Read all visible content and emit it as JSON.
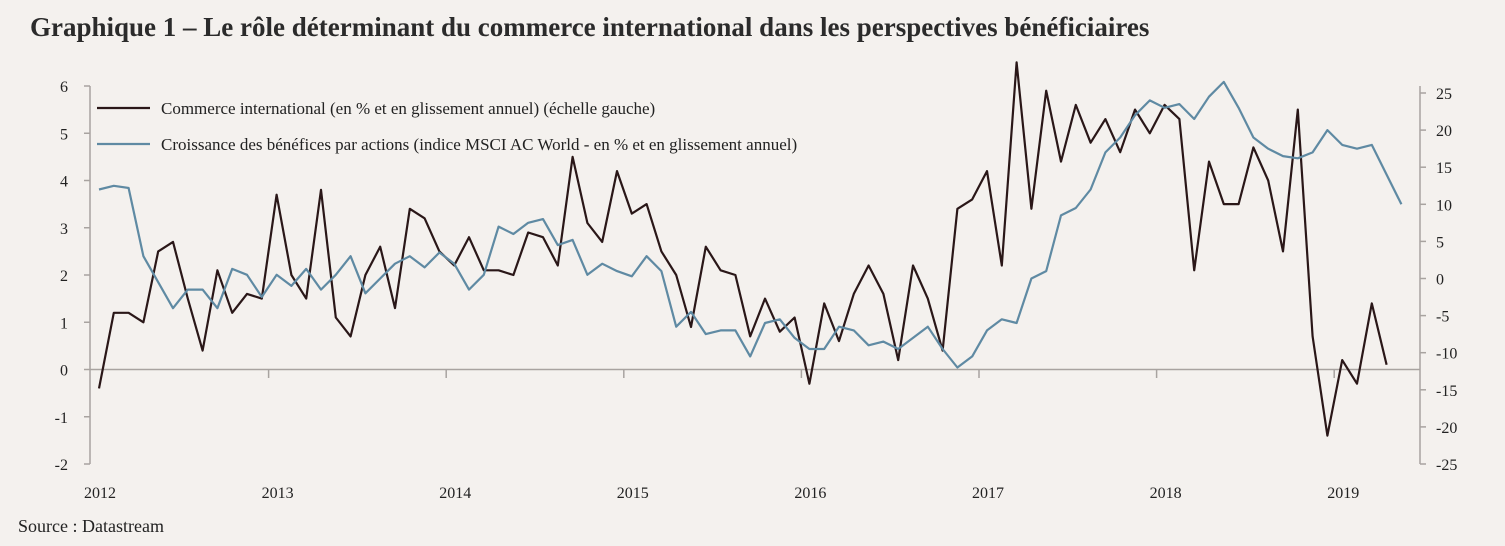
{
  "title": "Graphique 1 – Le rôle déterminant du commerce international dans les perspectives bénéficiaires",
  "source": "Source : Datastream",
  "chart_data": {
    "type": "line",
    "x_start": "2012-01",
    "x_step": "month",
    "x_tick_labels": [
      "2012",
      "2013",
      "2014",
      "2015",
      "2016",
      "2017",
      "2018",
      "2019"
    ],
    "y_left": {
      "ylim": [
        -2,
        6
      ],
      "ticks": [
        "6",
        "5",
        "4",
        "3",
        "2",
        "1",
        "0",
        "-1",
        "-2"
      ]
    },
    "y_right": {
      "ylim": [
        -25,
        26
      ],
      "ticks": [
        "25",
        "20",
        "15",
        "10",
        "5",
        "0",
        "-5",
        "-10",
        "-15",
        "-20",
        "-25"
      ]
    },
    "grid": false,
    "legend": "top-left",
    "series": [
      {
        "name": "Commerce international (en % et en glissement annuel) (échelle gauche)",
        "axis": "left",
        "color": "#2a1718",
        "values": [
          -0.4,
          1.2,
          1.2,
          1.0,
          2.5,
          2.7,
          1.5,
          0.4,
          2.1,
          1.2,
          1.6,
          1.5,
          3.7,
          2.0,
          1.5,
          3.8,
          1.1,
          0.7,
          2.0,
          2.6,
          1.3,
          3.4,
          3.2,
          2.5,
          2.2,
          2.8,
          2.1,
          2.1,
          2.0,
          2.9,
          2.8,
          2.2,
          4.5,
          3.1,
          2.7,
          4.2,
          3.3,
          3.5,
          2.5,
          2.0,
          0.9,
          2.6,
          2.1,
          2.0,
          0.7,
          1.5,
          0.8,
          1.1,
          -0.3,
          1.4,
          0.6,
          1.6,
          2.2,
          1.6,
          0.2,
          2.2,
          1.5,
          0.4,
          3.4,
          3.6,
          4.2,
          2.2,
          6.5,
          3.4,
          5.9,
          4.4,
          5.6,
          4.8,
          5.3,
          4.6,
          5.5,
          5.0,
          5.6,
          5.3,
          2.1,
          4.4,
          3.5,
          3.5,
          4.7,
          4.0,
          2.5,
          5.5,
          0.7,
          -1.4,
          0.2,
          -0.3,
          1.4,
          0.1
        ]
      },
      {
        "name": "Croissance des bénéfices par actions (indice MSCI AC World - en % et en glissement annuel)",
        "axis": "right",
        "color": "#5f8aa3",
        "values": [
          12.0,
          12.5,
          12.2,
          3.0,
          -0.5,
          -4.0,
          -1.5,
          -1.5,
          -4.0,
          1.3,
          0.5,
          -2.5,
          0.5,
          -1.0,
          1.3,
          -1.5,
          0.5,
          3.0,
          -2.0,
          0.0,
          2.0,
          3.0,
          1.5,
          3.5,
          2.0,
          -1.5,
          0.5,
          7.0,
          6.0,
          7.5,
          8.0,
          4.5,
          5.2,
          0.5,
          2.0,
          1.0,
          0.3,
          3.0,
          1.0,
          -6.5,
          -4.5,
          -7.5,
          -7.0,
          -7.0,
          -10.5,
          -6.0,
          -5.5,
          -8.0,
          -9.5,
          -9.5,
          -6.5,
          -7.0,
          -9.0,
          -8.5,
          -9.5,
          -8.0,
          -6.5,
          -9.5,
          -12.0,
          -10.5,
          -7.0,
          -5.5,
          -6.0,
          0.0,
          1.0,
          8.5,
          9.5,
          12.0,
          17.0,
          19.0,
          22.0,
          24.0,
          23.0,
          23.5,
          21.5,
          24.5,
          26.5,
          23.0,
          19.0,
          17.5,
          16.5,
          16.2,
          17.0,
          20.0,
          18.0,
          17.5,
          18.0,
          14.0,
          10.0
        ]
      }
    ]
  }
}
